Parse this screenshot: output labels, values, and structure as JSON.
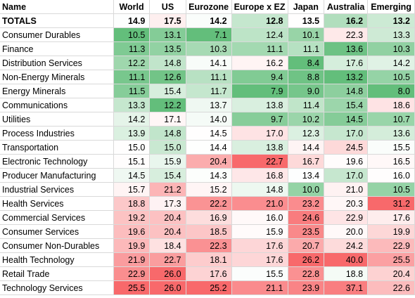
{
  "chart_data": {
    "type": "heatmap",
    "corner_label": "Name",
    "columns": [
      "World",
      "US",
      "Eurozone",
      "Europe x EZ",
      "Japan",
      "Australia",
      "Emerging"
    ],
    "rows": [
      {
        "name": "TOTALS",
        "values": [
          14.9,
          17.5,
          14.2,
          12.8,
          13.5,
          16.2,
          13.2
        ]
      },
      {
        "name": "Consumer Durables",
        "values": [
          10.5,
          13.1,
          7.1,
          12.4,
          10.1,
          22.3,
          13.3
        ]
      },
      {
        "name": "Finance",
        "values": [
          11.3,
          13.5,
          10.3,
          11.1,
          11.1,
          13.6,
          10.3
        ]
      },
      {
        "name": "Distribution Services",
        "values": [
          12.2,
          14.8,
          14.1,
          16.2,
          8.4,
          17.6,
          14.2
        ]
      },
      {
        "name": "Non-Energy Minerals",
        "values": [
          11.1,
          12.6,
          11.1,
          9.4,
          8.8,
          13.2,
          10.5
        ]
      },
      {
        "name": "Energy Minerals",
        "values": [
          11.5,
          15.4,
          11.7,
          7.9,
          9.0,
          14.8,
          8.0
        ]
      },
      {
        "name": "Communications",
        "values": [
          13.3,
          12.2,
          13.7,
          13.8,
          11.4,
          15.4,
          18.6
        ]
      },
      {
        "name": "Utilities",
        "values": [
          14.2,
          17.1,
          14.0,
          9.7,
          10.2,
          14.5,
          10.7
        ]
      },
      {
        "name": "Process Industries",
        "values": [
          13.9,
          14.8,
          14.5,
          17.0,
          12.3,
          17.0,
          13.6
        ]
      },
      {
        "name": "Transportation",
        "values": [
          15.0,
          15.0,
          14.4,
          13.8,
          14.4,
          24.5,
          15.5
        ]
      },
      {
        "name": "Electronic Technology",
        "values": [
          15.1,
          15.9,
          20.4,
          22.7,
          16.7,
          19.6,
          16.5
        ]
      },
      {
        "name": "Producer Manufacturing",
        "values": [
          14.5,
          15.4,
          14.3,
          16.8,
          13.4,
          17.0,
          16.0
        ]
      },
      {
        "name": "Industrial Services",
        "values": [
          15.7,
          21.2,
          15.2,
          14.8,
          10.0,
          21.0,
          10.5
        ]
      },
      {
        "name": "Health Services",
        "values": [
          18.8,
          17.3,
          22.2,
          21.0,
          23.2,
          20.3,
          31.2
        ]
      },
      {
        "name": "Commercial Services",
        "values": [
          19.2,
          20.4,
          16.9,
          16.0,
          24.6,
          22.9,
          17.6
        ]
      },
      {
        "name": "Consumer Services",
        "values": [
          19.6,
          20.4,
          18.5,
          15.9,
          23.5,
          20.0,
          19.9
        ]
      },
      {
        "name": "Consumer Non-Durables",
        "values": [
          19.9,
          18.4,
          22.3,
          17.6,
          20.7,
          24.2,
          22.9
        ]
      },
      {
        "name": "Health Technology",
        "values": [
          21.9,
          22.7,
          18.1,
          17.6,
          26.2,
          40.0,
          25.5
        ]
      },
      {
        "name": "Retail Trade",
        "values": [
          22.9,
          26.0,
          17.6,
          15.5,
          22.8,
          18.8,
          20.4
        ]
      },
      {
        "name": "Technology Services",
        "values": [
          25.5,
          26.0,
          25.2,
          21.1,
          23.9,
          37.1,
          22.6
        ]
      }
    ],
    "color_scale": {
      "low": "#63be7b",
      "mid": "#ffffff",
      "high": "#f8696b",
      "scope": "per-column"
    }
  }
}
